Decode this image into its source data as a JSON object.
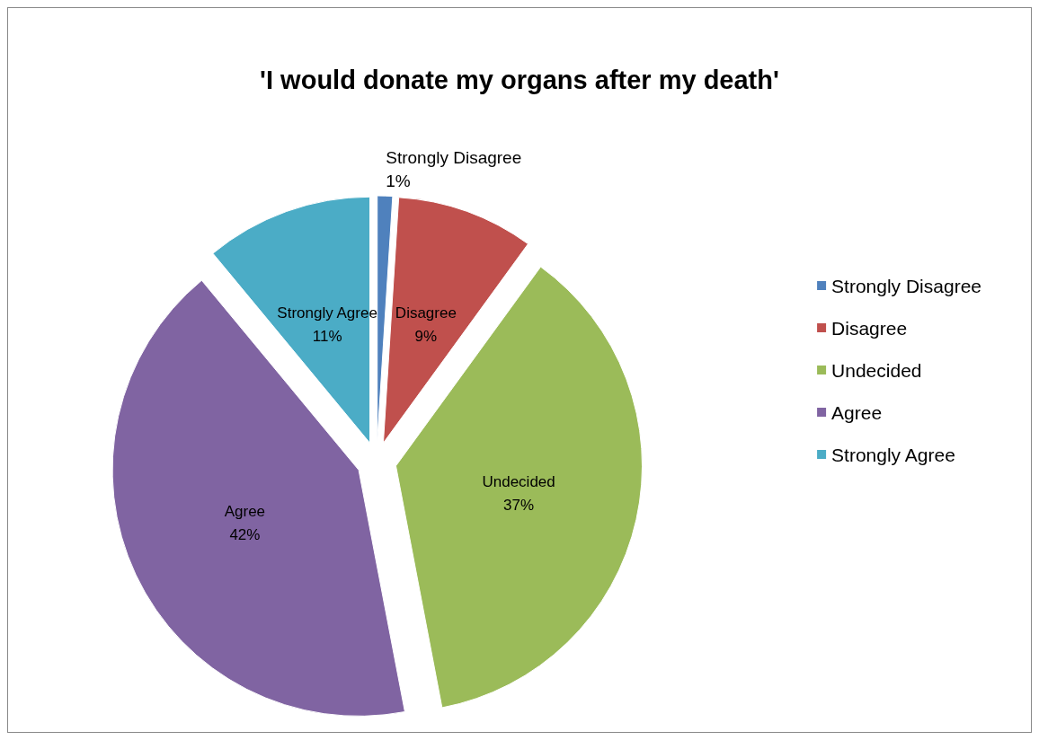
{
  "chart_data": {
    "type": "pie",
    "title": "'I would donate my organs after my death'",
    "categories": [
      "Strongly Disagree",
      "Disagree",
      "Undecided",
      "Agree",
      "Strongly Agree"
    ],
    "values": [
      1,
      9,
      37,
      42,
      11
    ],
    "colors": [
      "#4f81bd",
      "#c0504d",
      "#9bbb59",
      "#8064a2",
      "#4bacc6"
    ],
    "value_labels": [
      "1%",
      "9%",
      "37%",
      "42%",
      "11%"
    ],
    "legend": "right"
  }
}
